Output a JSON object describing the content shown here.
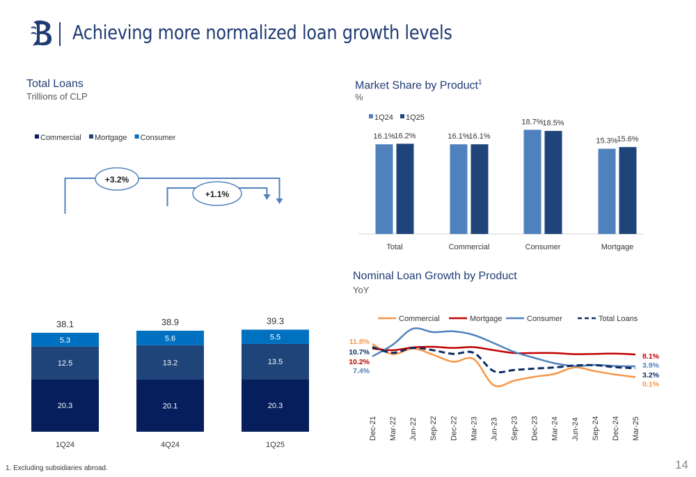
{
  "header": {
    "title": "Achieving more normalized loan growth levels"
  },
  "footnote": "1. Excluding subsidiaries abroad.",
  "page_number": "14",
  "colors": {
    "navy": "#061e5c",
    "dark_blue": "#1f4479",
    "mid_blue": "#0070c0",
    "light_blue": "#4f81bd",
    "brand": "#1f3b73",
    "orange": "#f79646",
    "red": "#c00000",
    "consumer_line": "#4f81bd",
    "total_line": "#0b2c63"
  },
  "chart_data": [
    {
      "type": "bar",
      "stacked": true,
      "title": "Total Loans",
      "subtitle": "Trillions of CLP",
      "categories": [
        "1Q24",
        "4Q24",
        "1Q25"
      ],
      "series": [
        {
          "name": "Commercial",
          "color": "#061e5c",
          "values": [
            20.3,
            20.1,
            20.3
          ]
        },
        {
          "name": "Mortgage",
          "color": "#1f4479",
          "values": [
            12.5,
            13.2,
            13.5
          ]
        },
        {
          "name": "Consumer",
          "color": "#0070c0",
          "values": [
            5.3,
            5.6,
            5.5
          ]
        }
      ],
      "totals": [
        "38.1",
        "38.9",
        "39.3"
      ],
      "annotations": [
        "+3.2%",
        "+1.1%"
      ],
      "legend": "top-left"
    },
    {
      "type": "bar",
      "title": "Market Share by Product",
      "title_sup": "1",
      "subtitle": "%",
      "categories": [
        "Total",
        "Commercial",
        "Consumer",
        "Mortgage"
      ],
      "series": [
        {
          "name": "1Q24",
          "color": "#4f81bd",
          "values": [
            16.1,
            16.1,
            18.7,
            15.3
          ],
          "labels": [
            "16.1%",
            "16.1%",
            "18.7%",
            "15.3%"
          ]
        },
        {
          "name": "1Q25",
          "color": "#1f4479",
          "values": [
            16.2,
            16.1,
            18.5,
            15.6
          ],
          "labels": [
            "16.2%",
            "16.1%",
            "18.5%",
            "15.6%"
          ]
        }
      ],
      "legend": "top-left"
    },
    {
      "type": "line",
      "title": "Nominal Loan Growth by Product",
      "subtitle": "YoY",
      "x": [
        "Dec-21",
        "Mar-22",
        "Jun-22",
        "Sep-22",
        "Dec-22",
        "Mar-23",
        "Jun-23",
        "Sep-23",
        "Dec-23",
        "Mar-24",
        "Jun-24",
        "Sep-24",
        "Dec-24",
        "Mar-25"
      ],
      "series": [
        {
          "name": "Commercial",
          "color": "#f79646",
          "dash": false,
          "values": [
            11.8,
            8.2,
            10.2,
            8.0,
            5.5,
            6.5,
            -2.8,
            -1.2,
            0.2,
            1.2,
            3.5,
            2.2,
            1.0,
            0.1
          ]
        },
        {
          "name": "Mortgage",
          "color": "#c00000",
          "dash": false,
          "values": [
            10.2,
            9.6,
            10.6,
            10.8,
            10.4,
            10.7,
            9.6,
            8.6,
            8.6,
            8.6,
            8.2,
            8.3,
            8.4,
            8.1
          ]
        },
        {
          "name": "Consumer",
          "color": "#4f81bd",
          "dash": false,
          "values": [
            7.4,
            11.5,
            17.2,
            16.0,
            16.3,
            15.0,
            12.1,
            9.0,
            6.9,
            5.0,
            4.0,
            4.4,
            4.0,
            3.9
          ]
        },
        {
          "name": "Total Loans",
          "color": "#0b2c63",
          "dash": true,
          "values": [
            10.7,
            8.7,
            10.4,
            9.6,
            8.3,
            8.7,
            2.2,
            2.6,
            3.1,
            3.5,
            4.2,
            4.3,
            3.6,
            3.2
          ]
        }
      ],
      "start_labels": [
        {
          "text": "11.8%",
          "color": "#f79646"
        },
        {
          "text": "10.7%",
          "color": "#0b2c63"
        },
        {
          "text": "10.2%",
          "color": "#c00000"
        },
        {
          "text": "7.4%",
          "color": "#4f81bd"
        }
      ],
      "end_labels": [
        {
          "text": "8.1%",
          "color": "#c00000"
        },
        {
          "text": "3.9%",
          "color": "#4f81bd"
        },
        {
          "text": "3.2%",
          "color": "#0b2c63"
        },
        {
          "text": "0.1%",
          "color": "#f79646"
        }
      ],
      "legend": "top"
    }
  ]
}
